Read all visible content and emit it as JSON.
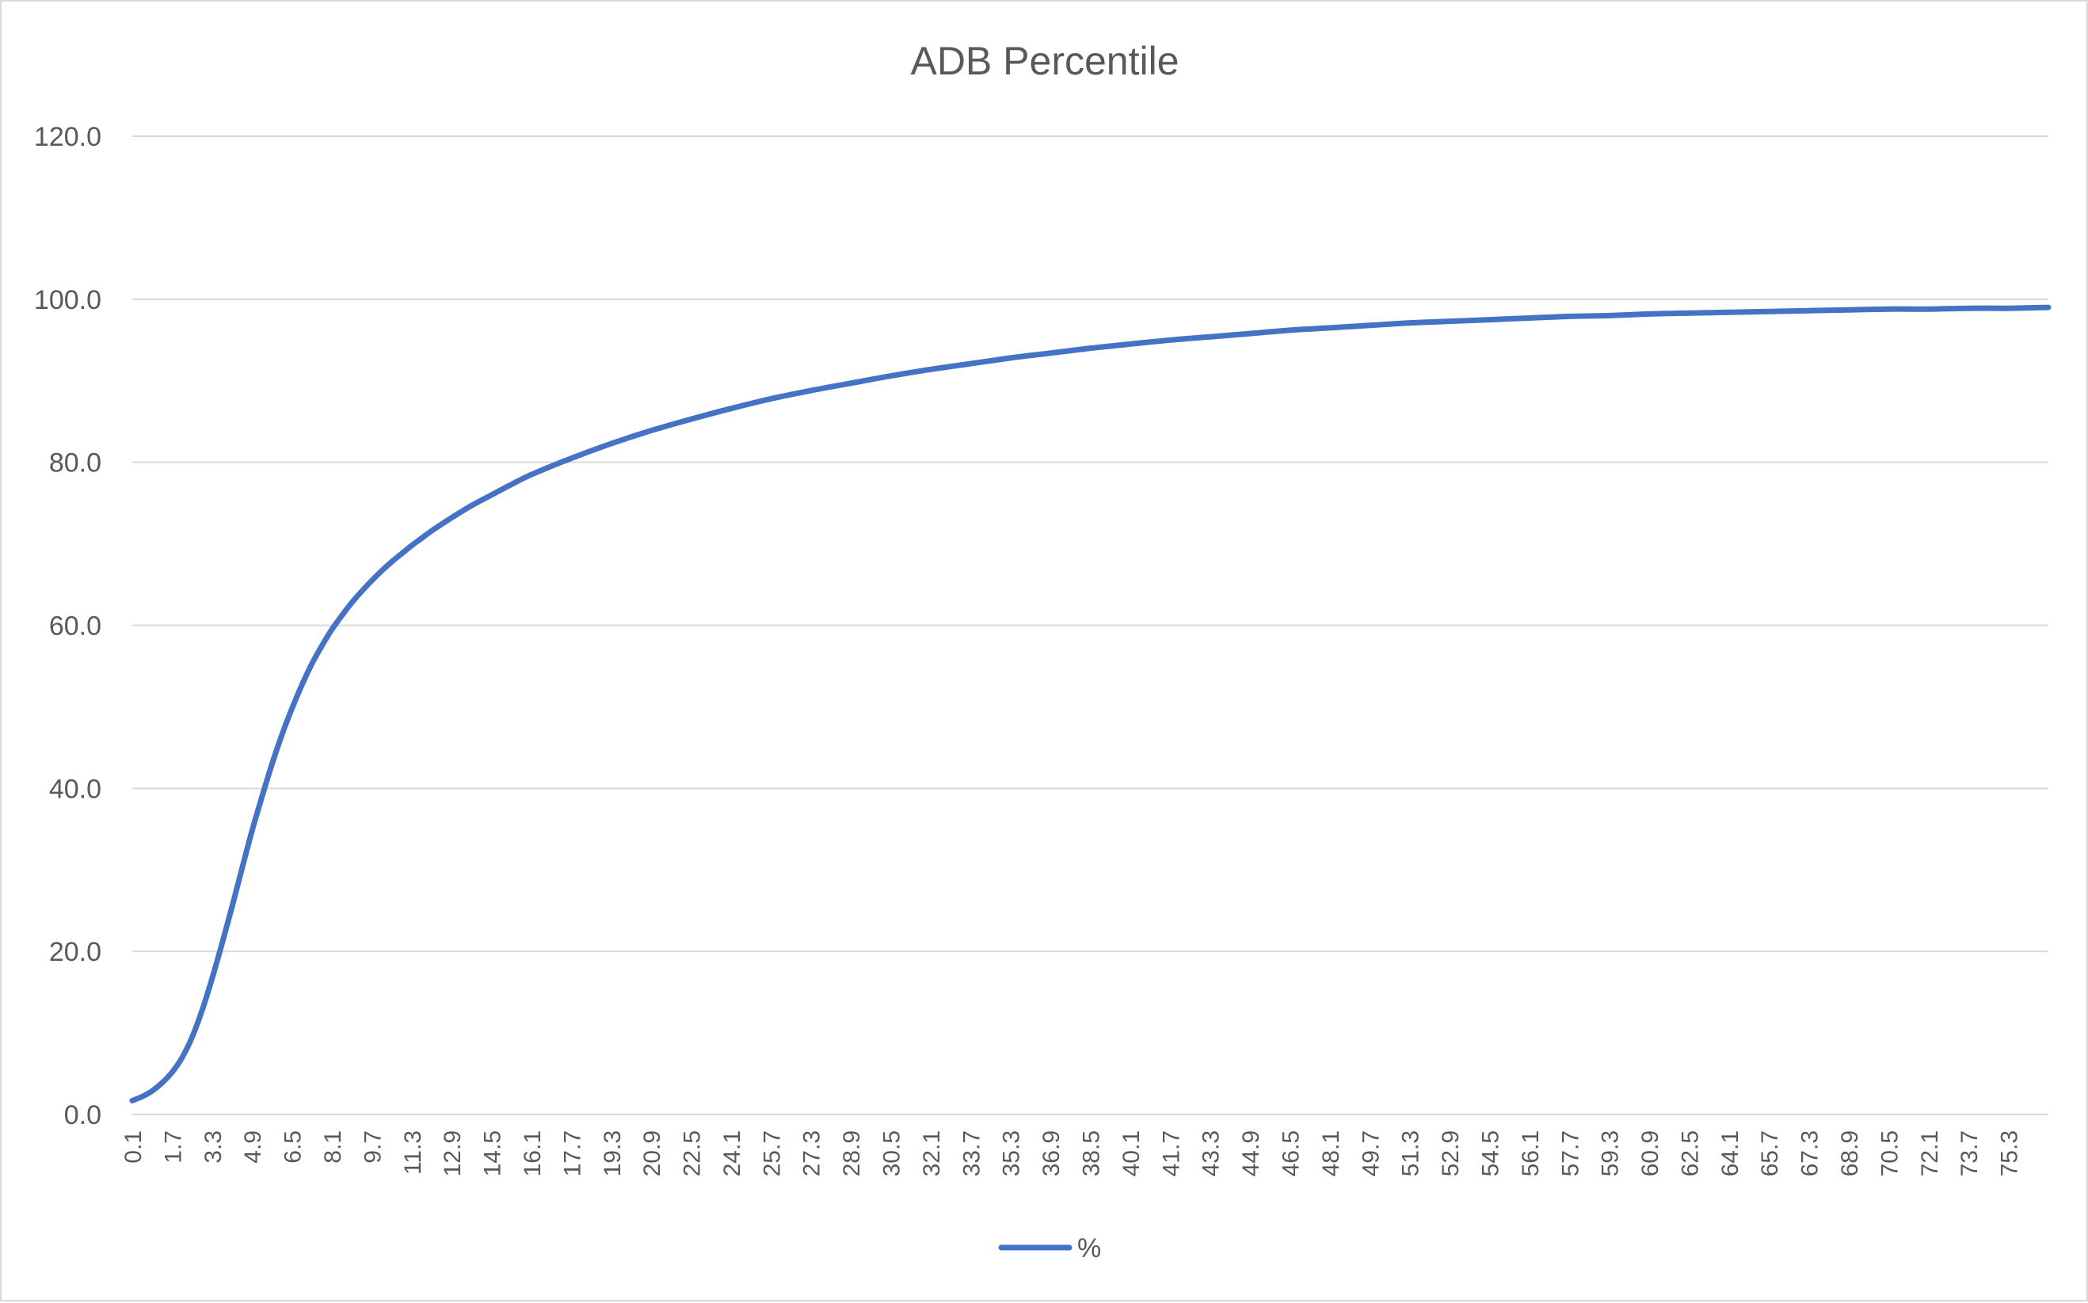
{
  "chart_data": {
    "type": "line",
    "title": "ADB Percentile",
    "xlabel": "",
    "ylabel": "",
    "ylim": [
      0,
      120
    ],
    "yticks": [
      "0.0",
      "20.0",
      "40.0",
      "60.0",
      "80.0",
      "100.0",
      "120.0"
    ],
    "xlim": [
      0.1,
      76.9
    ],
    "xtick_labels": [
      "0.1",
      "1.7",
      "3.3",
      "4.9",
      "6.5",
      "8.1",
      "9.7",
      "11.3",
      "12.9",
      "14.5",
      "16.1",
      "17.7",
      "19.3",
      "20.9",
      "22.5",
      "24.1",
      "25.7",
      "27.3",
      "28.9",
      "30.5",
      "32.1",
      "33.7",
      "35.3",
      "36.9",
      "38.5",
      "40.1",
      "41.7",
      "43.3",
      "44.9",
      "46.5",
      "48.1",
      "49.7",
      "51.3",
      "52.9",
      "54.5",
      "56.1",
      "57.7",
      "59.3",
      "60.9",
      "62.5",
      "64.1",
      "65.7",
      "67.3",
      "68.9",
      "70.5",
      "72.1",
      "73.7",
      "75.3"
    ],
    "grid": true,
    "legend_position": "bottom",
    "series": [
      {
        "name": "%",
        "color": "#4472c4",
        "x": [
          0.1,
          0.5,
          0.9,
          1.3,
          1.7,
          2.1,
          2.5,
          2.9,
          3.3,
          3.7,
          4.1,
          4.5,
          4.9,
          5.3,
          5.7,
          6.1,
          6.5,
          6.9,
          7.3,
          7.7,
          8.1,
          8.5,
          8.9,
          9.3,
          9.7,
          10.1,
          10.5,
          10.9,
          11.3,
          11.7,
          12.1,
          12.9,
          13.7,
          14.5,
          15.3,
          16.1,
          17.7,
          19.3,
          20.9,
          22.5,
          24.1,
          25.7,
          27.3,
          28.9,
          30.5,
          32.1,
          33.7,
          35.3,
          36.9,
          38.5,
          40.1,
          41.7,
          43.3,
          44.9,
          46.5,
          48.1,
          49.7,
          51.3,
          52.9,
          54.5,
          56.1,
          57.7,
          59.3,
          60.9,
          62.5,
          64.1,
          65.7,
          67.3,
          68.9,
          70.5,
          72.1,
          73.7,
          75.3,
          76.9
        ],
        "y": [
          1.7,
          2.2,
          2.9,
          3.9,
          5.2,
          7.0,
          9.5,
          12.8,
          16.7,
          21.0,
          25.5,
          30.2,
          34.8,
          39.0,
          43.0,
          46.6,
          49.8,
          52.7,
          55.3,
          57.5,
          59.5,
          61.2,
          62.8,
          64.2,
          65.5,
          66.7,
          67.8,
          68.8,
          69.8,
          70.7,
          71.6,
          73.2,
          74.7,
          76.0,
          77.3,
          78.5,
          80.5,
          82.3,
          83.9,
          85.3,
          86.6,
          87.8,
          88.8,
          89.7,
          90.6,
          91.4,
          92.1,
          92.8,
          93.4,
          94.0,
          94.5,
          95.0,
          95.4,
          95.8,
          96.2,
          96.5,
          96.8,
          97.1,
          97.3,
          97.5,
          97.7,
          97.9,
          98.0,
          98.2,
          98.3,
          98.4,
          98.5,
          98.6,
          98.7,
          98.8,
          98.8,
          98.9,
          98.9,
          99.0
        ]
      }
    ]
  }
}
